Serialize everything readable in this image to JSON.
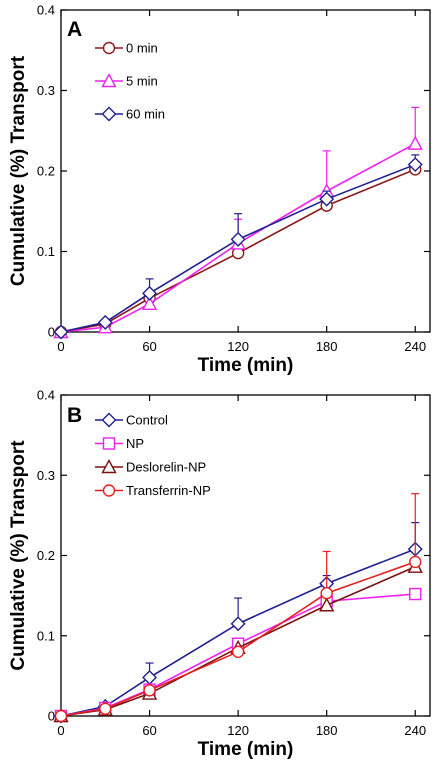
{
  "chart_data": [
    {
      "type": "line",
      "panel_label": "A",
      "xlabel": "Time (min)",
      "ylabel": "Cumulative (%) Transport",
      "x": [
        0,
        30,
        60,
        120,
        180,
        240
      ],
      "xlim": [
        0,
        250
      ],
      "ylim": [
        0,
        0.4
      ],
      "xticks": [
        "0",
        "60",
        "120",
        "180",
        "240"
      ],
      "yticks": [
        "0",
        "0.1",
        "0.2",
        "0.3",
        "0.4"
      ],
      "legend_position": "upper-left",
      "series": [
        {
          "name": "0 min",
          "color": "#8B1A1A",
          "marker": "circle",
          "values": [
            0,
            0.01,
            0.042,
            0.098,
            0.157,
            0.202
          ],
          "errors": [
            0,
            0,
            0,
            0,
            0,
            0
          ]
        },
        {
          "name": "5 min",
          "color": "#EE22EE",
          "marker": "triangle",
          "values": [
            0,
            0.006,
            0.035,
            0.11,
            0.175,
            0.234
          ],
          "errors": [
            0,
            0,
            0,
            0.03,
            0.05,
            0.045
          ]
        },
        {
          "name": "60 min",
          "color": "#1F1F8F",
          "marker": "diamond",
          "values": [
            0,
            0.012,
            0.048,
            0.115,
            0.165,
            0.208
          ],
          "errors": [
            0,
            0.003,
            0.018,
            0.032,
            0.01,
            0.012
          ]
        }
      ]
    },
    {
      "type": "line",
      "panel_label": "B",
      "xlabel": "Time (min)",
      "ylabel": "Cumulative (%) Transport",
      "x": [
        0,
        30,
        60,
        120,
        180,
        240
      ],
      "xlim": [
        0,
        250
      ],
      "ylim": [
        0,
        0.4
      ],
      "xticks": [
        "0",
        "60",
        "120",
        "180",
        "240"
      ],
      "yticks": [
        "0",
        "0.1",
        "0.2",
        "0.3",
        "0.4"
      ],
      "legend_position": "upper-left",
      "series": [
        {
          "name": "Control",
          "color": "#1F1F8F",
          "marker": "diamond",
          "values": [
            0,
            0.012,
            0.048,
            0.115,
            0.165,
            0.208
          ],
          "errors": [
            0,
            0.003,
            0.018,
            0.032,
            0.01,
            0.033
          ]
        },
        {
          "name": "NP",
          "color": "#EE22EE",
          "marker": "square",
          "values": [
            0,
            0.01,
            0.033,
            0.09,
            0.143,
            0.152
          ],
          "errors": [
            0,
            0,
            0,
            0,
            0,
            0
          ]
        },
        {
          "name": "Deslorelin-NP",
          "color": "#7A1010",
          "marker": "triangle",
          "values": [
            0,
            0.008,
            0.028,
            0.085,
            0.138,
            0.186
          ],
          "errors": [
            0,
            0,
            0,
            0,
            0,
            0
          ]
        },
        {
          "name": "Transferrin-NP",
          "color": "#E32020",
          "marker": "circle",
          "values": [
            0,
            0.009,
            0.032,
            0.08,
            0.153,
            0.192
          ],
          "errors": [
            0,
            0,
            0,
            0,
            0.052,
            0.085
          ]
        }
      ]
    }
  ]
}
